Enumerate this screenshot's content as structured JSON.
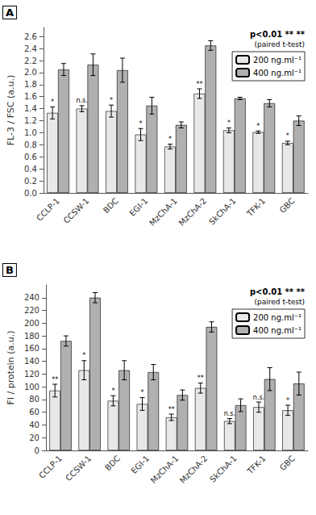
{
  "chart_data": [
    {
      "type": "bar",
      "title": "A",
      "ylabel": "FL-3 / FSC (a.u.)",
      "categories": [
        "CCLP-1",
        "CCSW-1",
        "BDC",
        "EGI-1",
        "MzChA-1",
        "MzChA-2",
        "SkChA-1",
        "TFK-1",
        "GBC"
      ],
      "series": [
        {
          "name": "200 ng.ml⁻¹",
          "color": "#e8e8e8",
          "values": [
            1.33,
            1.4,
            1.36,
            0.97,
            0.77,
            1.65,
            1.04,
            1.01,
            0.83
          ],
          "errors": [
            0.1,
            0.05,
            0.1,
            0.1,
            0.04,
            0.08,
            0.04,
            0.02,
            0.03
          ],
          "labels": [
            "*",
            "n.s.",
            "*",
            "*",
            "*",
            "**",
            "*",
            "*",
            "*"
          ]
        },
        {
          "name": "400 ng.ml⁻¹",
          "color": "#b0b0b0",
          "values": [
            2.05,
            2.13,
            2.04,
            1.45,
            1.13,
            2.45,
            1.57,
            1.49,
            1.2
          ],
          "errors": [
            0.1,
            0.18,
            0.2,
            0.14,
            0.05,
            0.08,
            0.02,
            0.06,
            0.08
          ]
        }
      ],
      "ylim": [
        0.0,
        2.75
      ],
      "yticks": [
        {
          "value": 0,
          "label": "0.0"
        },
        0.2,
        0.4,
        0.6,
        0.8,
        {
          "value": 1,
          "label": "1.0"
        },
        1.2,
        1.4,
        1.6,
        1.8,
        {
          "value": 2,
          "label": "2.0"
        },
        2.2,
        2.4,
        2.6
      ],
      "grid": false,
      "legend": "upper right",
      "annotations": [
        "p<0.01 ** **",
        "(paired t-test)"
      ]
    },
    {
      "type": "bar",
      "title": "B",
      "ylabel": "FI / protein (a.u.)",
      "categories": [
        "CCLP-1",
        "CCSW-1",
        "BDC",
        "EGI-1",
        "MzChA-1",
        "MzChA-2",
        "SkChA-1",
        "TFK-1",
        "GBC"
      ],
      "series": [
        {
          "name": "200 ng.ml⁻¹",
          "color": "#e8e8e8",
          "values": [
            94,
            126,
            78,
            73,
            52,
            98,
            46,
            68,
            63
          ],
          "errors": [
            10,
            15,
            8,
            10,
            5,
            8,
            4,
            8,
            8
          ],
          "labels": [
            "**",
            "*",
            "*",
            "*",
            "**",
            "**",
            "n.s.",
            "n.s.",
            "*"
          ]
        },
        {
          "name": "400 ng.ml⁻¹",
          "color": "#b0b0b0",
          "values": [
            172,
            240,
            126,
            123,
            87,
            194,
            71,
            112,
            105
          ],
          "errors": [
            8,
            8,
            15,
            12,
            8,
            8,
            10,
            18,
            18
          ]
        }
      ],
      "ylim": [
        0,
        260
      ],
      "yticks": [
        0,
        20,
        40,
        60,
        80,
        100,
        120,
        140,
        160,
        180,
        200,
        220,
        240
      ],
      "grid": false,
      "legend": "upper right",
      "annotations": [
        "p<0.01 ** **",
        "(paired t-test)"
      ]
    }
  ]
}
